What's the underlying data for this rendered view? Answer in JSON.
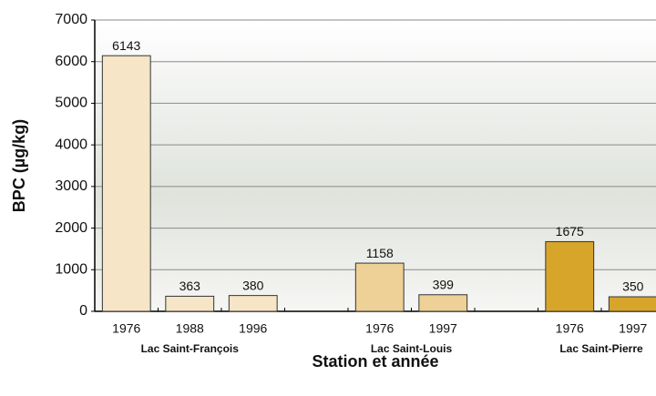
{
  "chart_data": {
    "type": "bar",
    "x_label": "Station et année",
    "y_label": "BPC (µg/kg)",
    "categories": [
      "1976",
      "1988",
      "1996",
      null,
      "1976",
      "1997",
      null,
      "1976",
      "1997"
    ],
    "series": [
      {
        "name": "Lac Saint-François",
        "color": "#f6e5c6",
        "values": [
          6143,
          363,
          380,
          null,
          null,
          null,
          null,
          null,
          null
        ]
      },
      {
        "name": "Lac Saint-Louis",
        "color": "#eed196",
        "values": [
          null,
          null,
          null,
          null,
          1158,
          399,
          null,
          null,
          null
        ]
      },
      {
        "name": "Lac Saint-Pierre",
        "color": "#d8a52b",
        "values": [
          null,
          null,
          null,
          null,
          null,
          null,
          null,
          1675,
          350
        ]
      }
    ],
    "ylim": [
      0,
      7000
    ],
    "yticks": [
      0,
      1000,
      2000,
      3000,
      4000,
      5000,
      6000,
      7000
    ],
    "grid": true
  }
}
